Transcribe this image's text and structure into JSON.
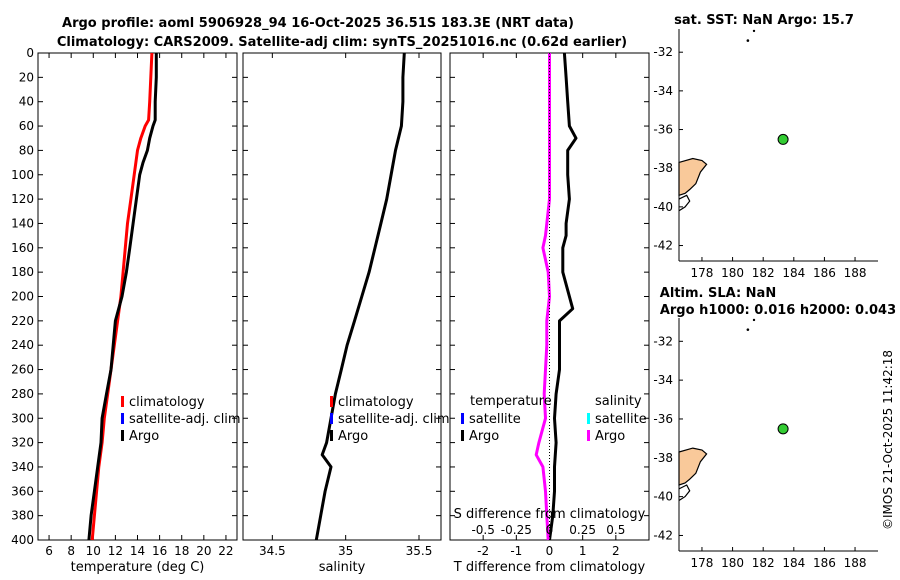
{
  "figure_title": {
    "line1": "Argo profile: aoml 5906928_94 16-Oct-2025 36.51S 183.3E (NRT data)",
    "line2": "Climatology: CARS2009. Satellite-adj clim: synTS_20251016.nc (0.62d earlier)"
  },
  "credit": "©IMOS 21-Oct-2025 11:42:18",
  "colors": {
    "climatology": "#ff0000",
    "satellite_clim": "#0000ff",
    "argo": "#000000",
    "salinity_satellite": "#00ffff",
    "salinity_argo": "#ff00ff",
    "land": "#f9c99a",
    "argo_marker": "#33cc33"
  },
  "chart_data": [
    {
      "id": "temperature",
      "type": "line",
      "xlabel": "temperature (deg C)",
      "ylabel": "",
      "xlim": [
        5,
        23
      ],
      "ylim": [
        400,
        0
      ],
      "xticks": [
        6,
        8,
        10,
        12,
        14,
        16,
        18,
        20,
        22
      ],
      "yticks": [
        0,
        20,
        40,
        60,
        80,
        100,
        120,
        140,
        160,
        180,
        200,
        220,
        240,
        260,
        280,
        300,
        320,
        340,
        360,
        380,
        400
      ],
      "series": [
        {
          "name": "climatology",
          "color": "#ff0000",
          "depth": [
            0,
            20,
            40,
            55,
            60,
            70,
            80,
            100,
            120,
            140,
            160,
            180,
            200,
            220,
            240,
            260,
            280,
            300,
            320,
            340,
            360,
            380,
            400
          ],
          "values": [
            15.3,
            15.2,
            15.1,
            15.0,
            14.7,
            14.3,
            14.0,
            13.7,
            13.4,
            13.1,
            12.9,
            12.7,
            12.5,
            12.2,
            11.9,
            11.6,
            11.3,
            11.0,
            10.8,
            10.5,
            10.3,
            10.1,
            9.9
          ]
        },
        {
          "name": "satellite-adj. clim",
          "color": "#0000ff",
          "depth": [],
          "values": []
        },
        {
          "name": "Argo",
          "color": "#000000",
          "depth": [
            0,
            20,
            40,
            55,
            60,
            70,
            80,
            90,
            100,
            120,
            140,
            160,
            180,
            200,
            210,
            220,
            240,
            260,
            280,
            300,
            320,
            340,
            360,
            380,
            400
          ],
          "values": [
            15.7,
            15.7,
            15.6,
            15.6,
            15.4,
            15.1,
            14.9,
            14.5,
            14.2,
            13.9,
            13.6,
            13.3,
            13.0,
            12.6,
            12.3,
            12.0,
            11.8,
            11.6,
            11.2,
            10.8,
            10.7,
            10.4,
            10.1,
            9.8,
            9.6
          ]
        }
      ],
      "legend": [
        "climatology",
        "satellite-adj. clim",
        "Argo"
      ]
    },
    {
      "id": "salinity",
      "type": "line",
      "xlabel": "salinity",
      "ylabel": "",
      "xlim": [
        34.3,
        35.65
      ],
      "ylim": [
        400,
        0
      ],
      "xticks": [
        34.5,
        35,
        35.5
      ],
      "xticklabels": [
        "34.5",
        "35",
        "35.5"
      ],
      "series": [
        {
          "name": "climatology",
          "color": "#ff0000",
          "depth": [],
          "values": []
        },
        {
          "name": "satellite-adj. clim",
          "color": "#0000ff",
          "depth": [],
          "values": []
        },
        {
          "name": "Argo",
          "color": "#000000",
          "depth": [
            0,
            20,
            40,
            60,
            80,
            100,
            120,
            140,
            160,
            180,
            200,
            220,
            240,
            260,
            280,
            300,
            320,
            330,
            340,
            360,
            380,
            400
          ],
          "values": [
            35.4,
            35.39,
            35.39,
            35.38,
            35.34,
            35.31,
            35.28,
            35.24,
            35.2,
            35.16,
            35.11,
            35.06,
            35.01,
            34.97,
            34.93,
            34.9,
            34.87,
            34.84,
            34.9,
            34.86,
            34.83,
            34.8
          ]
        }
      ],
      "legend": [
        "climatology",
        "satellite-adj. clim",
        "Argo"
      ]
    },
    {
      "id": "difference",
      "type": "line",
      "xlabel": "T difference from climatology",
      "top_xlabel": "S difference from climatology",
      "xlim": [
        -3,
        3
      ],
      "ylim": [
        400,
        0
      ],
      "xticks": [
        -2,
        -1,
        0,
        1,
        2
      ],
      "xticklabels": [
        "-2",
        "-1",
        "0",
        "1",
        "2"
      ],
      "top_xticklabels": [
        "-0.5",
        "-0.25",
        "0",
        "0.25",
        "0.5"
      ],
      "series": [
        {
          "name": "temperature Argo",
          "color": "#000000",
          "depth": [
            0,
            20,
            40,
            60,
            70,
            80,
            100,
            120,
            140,
            150,
            160,
            180,
            200,
            210,
            220,
            240,
            260,
            280,
            300,
            320,
            340,
            360,
            380,
            400
          ],
          "values": [
            0.45,
            0.5,
            0.55,
            0.6,
            0.8,
            0.55,
            0.55,
            0.6,
            0.5,
            0.5,
            0.4,
            0.4,
            0.6,
            0.7,
            0.3,
            0.3,
            0.3,
            0.2,
            0.15,
            0.2,
            0.15,
            0.15,
            0.1,
            0.0
          ]
        },
        {
          "name": "salinity Argo",
          "color": "#ff00ff",
          "depth": [
            0,
            40,
            80,
            120,
            150,
            160,
            180,
            200,
            220,
            240,
            260,
            280,
            300,
            320,
            330,
            340,
            360,
            380,
            400
          ],
          "values": [
            0.0,
            0.0,
            0.0,
            0.0,
            -0.03,
            -0.05,
            -0.01,
            0.0,
            -0.02,
            -0.02,
            -0.03,
            -0.04,
            -0.03,
            -0.08,
            -0.1,
            -0.05,
            -0.03,
            -0.02,
            -0.01
          ]
        }
      ],
      "legend_left": {
        "title": "temperature",
        "items": [
          "satellite",
          "Argo"
        ]
      },
      "legend_right": {
        "title": "salinity",
        "items": [
          "satellite",
          "Argo"
        ]
      }
    },
    {
      "id": "map_sst",
      "type": "scatter",
      "title": "sat. SST: NaN Argo: 15.7",
      "xlim": [
        176.5,
        189.5
      ],
      "ylim": [
        -42.8,
        -30.8
      ],
      "xticks": [
        178,
        180,
        182,
        184,
        186,
        188
      ],
      "yticks": [
        -32,
        -34,
        -36,
        -38,
        -40,
        -42
      ],
      "argo_position": {
        "lon": 183.3,
        "lat": -36.51
      }
    },
    {
      "id": "map_sla",
      "type": "scatter",
      "title": "Altim. SLA: NaN",
      "subtitle": "Argo h1000: 0.016 h2000: 0.043",
      "xlim": [
        176.5,
        189.5
      ],
      "ylim": [
        -42.8,
        -30.8
      ],
      "xticks": [
        178,
        180,
        182,
        184,
        186,
        188
      ],
      "yticks": [
        -32,
        -34,
        -36,
        -38,
        -40,
        -42
      ],
      "argo_position": {
        "lon": 183.3,
        "lat": -36.51
      }
    }
  ]
}
